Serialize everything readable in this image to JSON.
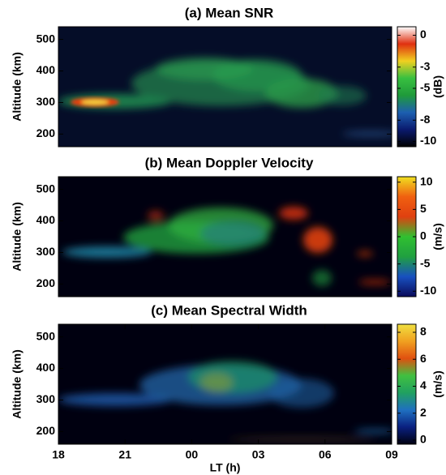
{
  "chart_data": [
    {
      "type": "heatmap",
      "title": "(a) Mean SNR",
      "ylabel": "Altitude (km)",
      "xlim": [
        18,
        33
      ],
      "ylim": [
        160,
        540
      ],
      "yticks": [
        200,
        300,
        400,
        500
      ],
      "colorbar": {
        "label": "(dB)",
        "lim": [
          -10.5,
          0.8
        ],
        "ticks": [
          0,
          -3,
          -5,
          -8,
          -10
        ],
        "colors": [
          "#000000",
          "#0a1a6e",
          "#1d5fb0",
          "#1f9a3a",
          "#38c040",
          "#f0d020",
          "#e03010",
          "#ffffff"
        ]
      }
    },
    {
      "type": "heatmap",
      "title": "(b) Mean Doppler Velocity",
      "ylabel": "Altitude (km)",
      "xlim": [
        18,
        33
      ],
      "ylim": [
        160,
        540
      ],
      "yticks": [
        200,
        300,
        400,
        500
      ],
      "colorbar": {
        "label": "(m/s)",
        "lim": [
          -11,
          11
        ],
        "ticks": [
          10,
          5,
          0,
          -5,
          -10
        ],
        "colors": [
          "#0a0a5a",
          "#1850c0",
          "#20a040",
          "#30c030",
          "#e04010",
          "#f06010",
          "#f0e020"
        ]
      }
    },
    {
      "type": "heatmap",
      "title": "(c) Mean Spectral Width",
      "ylabel": "Altitude (km)",
      "xlabel": "LT (h)",
      "xlim": [
        18,
        33
      ],
      "ylim": [
        160,
        540
      ],
      "yticks": [
        200,
        300,
        400,
        500
      ],
      "xticks": [
        18,
        21,
        {
          "value": 24,
          "label": "00"
        },
        {
          "value": 27,
          "label": "03"
        },
        {
          "value": 30,
          "label": "06"
        },
        {
          "value": 33,
          "label": "09"
        }
      ],
      "colorbar": {
        "label": "(m/s)",
        "lim": [
          -0.3,
          8.6
        ],
        "ticks": [
          8,
          6,
          4,
          2,
          0
        ],
        "colors": [
          "#000010",
          "#0a2080",
          "#1f70c0",
          "#20a060",
          "#40c040",
          "#e05010",
          "#f0a020",
          "#f0e040"
        ]
      }
    }
  ]
}
